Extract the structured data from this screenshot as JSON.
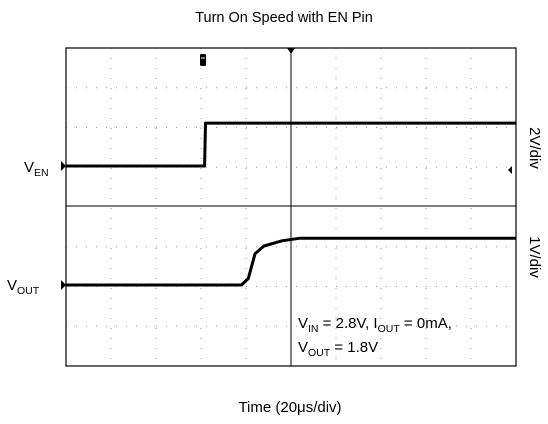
{
  "chart_data": {
    "type": "line",
    "title": "Turn On Speed with EN Pin",
    "xlabel": "Time (20μs/div)",
    "x_divisions": 10,
    "xlim": [
      0,
      10
    ],
    "grid": true,
    "channels": [
      {
        "name": "V",
        "name_sub": "EN",
        "scale_label": "2V/div",
        "scale_volts_per_div": 2,
        "x": [
          0,
          3.08,
          3.1,
          10
        ],
        "y": [
          0,
          0,
          3.3,
          3.3
        ]
      },
      {
        "name": "V",
        "name_sub": "OUT",
        "scale_label": "1V/div",
        "scale_volts_per_div": 1,
        "x": [
          0,
          3.9,
          4.05,
          4.2,
          4.4,
          4.8,
          5.2,
          5.6,
          10
        ],
        "y": [
          0,
          0,
          0.25,
          1.2,
          1.5,
          1.7,
          1.8,
          1.8,
          1.8
        ]
      }
    ],
    "annotation": {
      "vin_label": "V",
      "vin_sub": "IN",
      "vin_value": " = 2.8V, I",
      "iout_sub": "OUT",
      "iout_value": " = 0mA,",
      "vout_label": "V",
      "vout_sub": "OUT",
      "vout_value": " = 1.8V"
    }
  }
}
